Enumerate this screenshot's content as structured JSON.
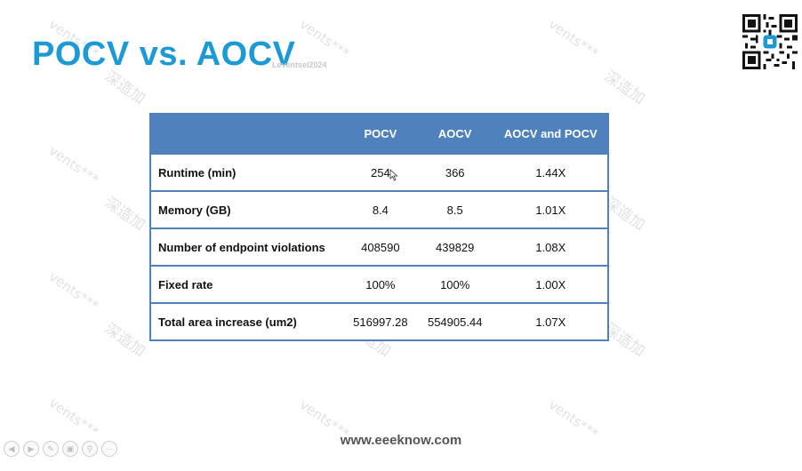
{
  "slide": {
    "title": "POCV vs. AOCV",
    "author_mark": "Leventsel2024",
    "footer_url": "www.eeeknow.com"
  },
  "table": {
    "headers": [
      "",
      "POCV",
      "AOCV",
      "AOCV and POCV"
    ],
    "rows": [
      {
        "metric": "Runtime (min)",
        "pocv": "254",
        "aocv": "366",
        "ratio": "1.44X"
      },
      {
        "metric": "Memory (GB)",
        "pocv": "8.4",
        "aocv": "8.5",
        "ratio": "1.01X"
      },
      {
        "metric": "Number of endpoint violations",
        "pocv": "408590",
        "aocv": "439829",
        "ratio": "1.08X"
      },
      {
        "metric": "Fixed rate",
        "pocv": "100%",
        "aocv": "100%",
        "ratio": "1.00X"
      },
      {
        "metric": "Total area increase (um2)",
        "pocv": "516997.28",
        "aocv": "554905.44",
        "ratio": "1.07X"
      }
    ]
  },
  "watermarks": {
    "latin": "vents***",
    "chinese": "深造加"
  },
  "toolbar": {
    "icons": [
      "prev-icon",
      "next-icon",
      "pen-icon",
      "slides-icon",
      "zoom-icon",
      "more-icon"
    ]
  },
  "colors": {
    "title": "#1b9ad6",
    "table_header_bg": "#4f81bd",
    "table_border": "#4f81bd"
  }
}
